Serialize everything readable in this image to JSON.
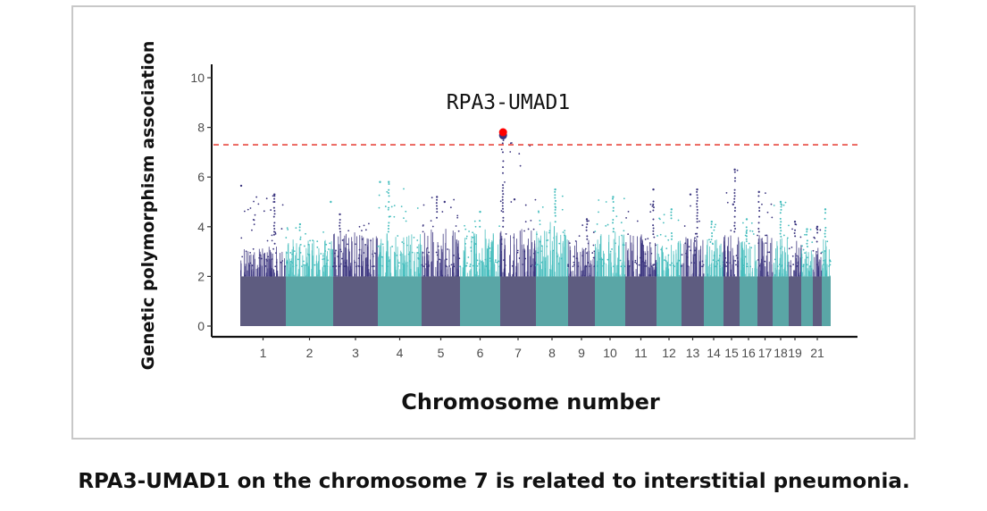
{
  "caption": "RPA3-UMAD1 on the chromosome 7 is related to interstitial pneumonia.",
  "chart_data": {
    "type": "scatter",
    "subtype": "manhattan",
    "title": "",
    "xlabel": "Chromosome number",
    "ylabel": "Genetic polymorphism association",
    "ylim": [
      0,
      10
    ],
    "yticks": [
      0,
      2,
      4,
      6,
      8,
      10
    ],
    "grid": false,
    "legend": "none",
    "significance_threshold": 7.3,
    "threshold_color": "#e8483f",
    "colors": {
      "dark": "#3b357f",
      "light": "#44bdbd",
      "dark_base": "#5e5c80",
      "light_base": "#5aa6a6",
      "highlight": "#ff0000"
    },
    "xtick_labels": [
      "1",
      "2",
      "3",
      "4",
      "5",
      "6",
      "7",
      "8",
      "9",
      "10",
      "11",
      "12",
      "13",
      "14",
      "15",
      "16",
      "17",
      "18",
      "19",
      "21"
    ],
    "chromosomes": [
      {
        "chr": "1",
        "length": 51,
        "color": "dark",
        "typical_max": 3.2,
        "peak": 5.3,
        "peak_pos": 0.75,
        "isolated": [
          {
            "pos": 0.02,
            "y": 5.65
          }
        ]
      },
      {
        "chr": "2",
        "length": 53,
        "color": "light",
        "typical_max": 3.5,
        "peak": 4.1,
        "peak_pos": 0.3,
        "isolated": [
          {
            "pos": 0.95,
            "y": 5.0
          }
        ]
      },
      {
        "chr": "3",
        "length": 50,
        "color": "dark",
        "typical_max": 3.8,
        "peak": 4.5,
        "peak_pos": 0.15,
        "isolated": []
      },
      {
        "chr": "4",
        "length": 49,
        "color": "light",
        "typical_max": 3.8,
        "peak": 5.8,
        "peak_pos": 0.25,
        "isolated": [
          {
            "pos": 0.05,
            "y": 5.8
          }
        ]
      },
      {
        "chr": "5",
        "length": 43,
        "color": "dark",
        "typical_max": 4.0,
        "peak": 5.2,
        "peak_pos": 0.4,
        "isolated": [
          {
            "pos": 0.6,
            "y": 5.0
          }
        ]
      },
      {
        "chr": "6",
        "length": 45,
        "color": "light",
        "typical_max": 4.0,
        "peak": 4.6,
        "peak_pos": 0.5,
        "isolated": []
      },
      {
        "chr": "7",
        "length": 40,
        "color": "dark",
        "typical_max": 4.0,
        "peak": 7.7,
        "peak_pos": 0.08,
        "isolated": [
          {
            "pos": 0.4,
            "y": 5.1
          }
        ]
      },
      {
        "chr": "8",
        "length": 36,
        "color": "light",
        "typical_max": 4.2,
        "peak": 5.5,
        "peak_pos": 0.6,
        "isolated": []
      },
      {
        "chr": "9",
        "length": 30,
        "color": "dark",
        "typical_max": 3.5,
        "peak": 4.3,
        "peak_pos": 0.7,
        "isolated": []
      },
      {
        "chr": "10",
        "length": 34,
        "color": "light",
        "typical_max": 3.8,
        "peak": 5.2,
        "peak_pos": 0.6,
        "isolated": []
      },
      {
        "chr": "11",
        "length": 35,
        "color": "dark",
        "typical_max": 3.7,
        "peak": 5.5,
        "peak_pos": 0.9,
        "isolated": []
      },
      {
        "chr": "12",
        "length": 28,
        "color": "light",
        "typical_max": 3.5,
        "peak": 4.7,
        "peak_pos": 0.6,
        "isolated": []
      },
      {
        "chr": "13",
        "length": 25,
        "color": "dark",
        "typical_max": 3.6,
        "peak": 5.5,
        "peak_pos": 0.7,
        "isolated": [
          {
            "pos": 0.4,
            "y": 5.3
          }
        ]
      },
      {
        "chr": "14",
        "length": 22,
        "color": "light",
        "typical_max": 3.5,
        "peak": 4.2,
        "peak_pos": 0.4,
        "isolated": []
      },
      {
        "chr": "15",
        "length": 18,
        "color": "dark",
        "typical_max": 3.8,
        "peak": 6.3,
        "peak_pos": 0.7,
        "isolated": [
          {
            "pos": 0.6,
            "y": 4.9
          }
        ]
      },
      {
        "chr": "16",
        "length": 20,
        "color": "light",
        "typical_max": 3.5,
        "peak": 4.3,
        "peak_pos": 0.4,
        "isolated": []
      },
      {
        "chr": "17",
        "length": 17,
        "color": "dark",
        "typical_max": 3.8,
        "peak": 5.4,
        "peak_pos": 0.1,
        "isolated": []
      },
      {
        "chr": "18",
        "length": 18,
        "color": "light",
        "typical_max": 3.6,
        "peak": 5.0,
        "peak_pos": 0.5,
        "isolated": []
      },
      {
        "chr": "19",
        "length": 14,
        "color": "dark",
        "typical_max": 3.5,
        "peak": 4.2,
        "peak_pos": 0.5,
        "isolated": []
      },
      {
        "chr": "20",
        "length": 13,
        "color": "light",
        "typical_max": 3.2,
        "peak": 3.9,
        "peak_pos": 0.5,
        "isolated": []
      },
      {
        "chr": "21",
        "length": 10,
        "color": "dark",
        "typical_max": 3.4,
        "peak": 4.0,
        "peak_pos": 0.5,
        "isolated": []
      },
      {
        "chr": "22",
        "length": 10,
        "color": "light",
        "typical_max": 3.6,
        "peak": 4.7,
        "peak_pos": 0.4,
        "isolated": []
      }
    ],
    "highlight": {
      "label": "RPA3-UMAD1",
      "chr": "7",
      "y": 7.75
    }
  }
}
